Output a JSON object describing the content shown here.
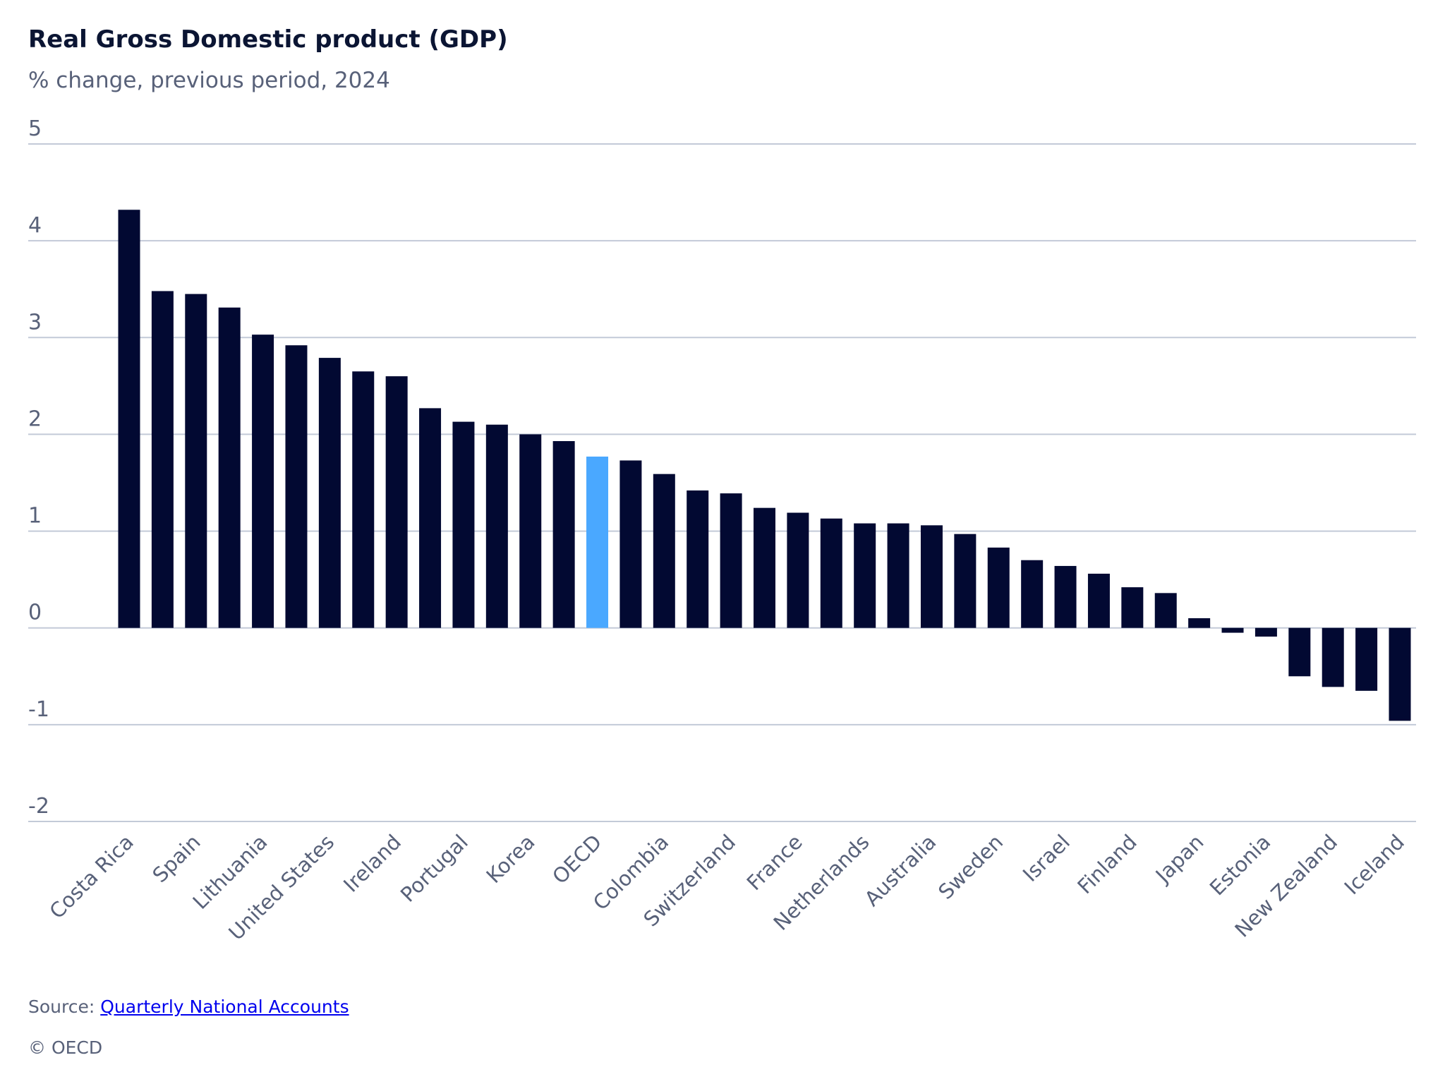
{
  "chart_data": {
    "type": "bar",
    "title": "Real Gross Domestic product (GDP)",
    "subtitle": "% change, previous period, 2024",
    "xlabel": "",
    "ylabel": "",
    "ylim": [
      -2,
      5
    ],
    "yticks": [
      5,
      4,
      3,
      2,
      1,
      0,
      -1,
      -2
    ],
    "grid": true,
    "categories": [
      "Costa Rica",
      "",
      "Spain",
      "",
      "Lithuania",
      "",
      "United States",
      "",
      "Ireland",
      "",
      "Portugal",
      "",
      "Korea",
      "",
      "OECD",
      "",
      "Colombia",
      "",
      "Switzerland",
      "",
      "France",
      "",
      "Netherlands",
      "",
      "Australia",
      "",
      "Sweden",
      "",
      "Israel",
      "",
      "Finland",
      "",
      "Japan",
      "",
      "Estonia",
      "",
      "New Zealand",
      "",
      "Iceland"
    ],
    "values": [
      4.32,
      3.48,
      3.45,
      3.31,
      3.03,
      2.92,
      2.79,
      2.65,
      2.6,
      2.27,
      2.13,
      2.1,
      2.0,
      1.93,
      1.77,
      1.73,
      1.59,
      1.42,
      1.39,
      1.24,
      1.19,
      1.13,
      1.08,
      1.08,
      1.06,
      0.97,
      0.83,
      0.7,
      0.64,
      0.56,
      0.42,
      0.36,
      0.1,
      -0.05,
      -0.09,
      -0.5,
      -0.61,
      -0.65,
      -0.96
    ],
    "highlight": "OECD",
    "colors": {
      "bar": "#020932",
      "highlight": "#4aa8ff",
      "grid": "#c3cad8"
    }
  },
  "footer": {
    "source_prefix": "Source: ",
    "source_link": "Quarterly National Accounts",
    "copyright": "© OECD"
  }
}
